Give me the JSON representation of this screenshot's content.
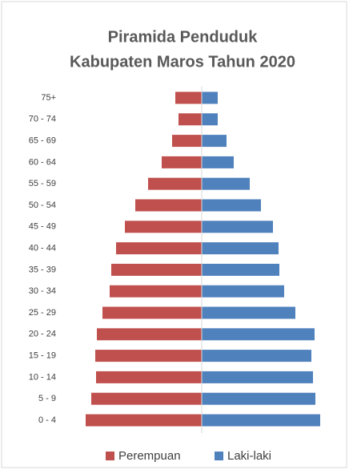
{
  "chart_data": {
    "type": "pyramid",
    "title": [
      "Piramida Penduduk",
      "Kabupaten Maros Tahun 2020"
    ],
    "categories": [
      "0 - 4",
      "5 - 9",
      "10 - 14",
      "15 - 19",
      "20 - 24",
      "25 - 29",
      "30 - 34",
      "35 - 39",
      "40 - 44",
      "45 - 49",
      "50 - 54",
      "55 - 59",
      "60 - 64",
      "65 - 69",
      "70 - 74",
      "75+"
    ],
    "series": [
      {
        "name": "Perempuan",
        "color": "#c0504d",
        "side": "left",
        "values": [
          145,
          138,
          132,
          133,
          131,
          124,
          115,
          113,
          107,
          96,
          83,
          67,
          50,
          37,
          29,
          33
        ]
      },
      {
        "name": "Laki-laki",
        "color": "#4f81bd",
        "side": "right",
        "values": [
          148,
          142,
          139,
          137,
          141,
          117,
          103,
          97,
          96,
          89,
          74,
          60,
          40,
          31,
          20,
          20
        ]
      }
    ],
    "xlim": [
      0,
      160
    ]
  }
}
